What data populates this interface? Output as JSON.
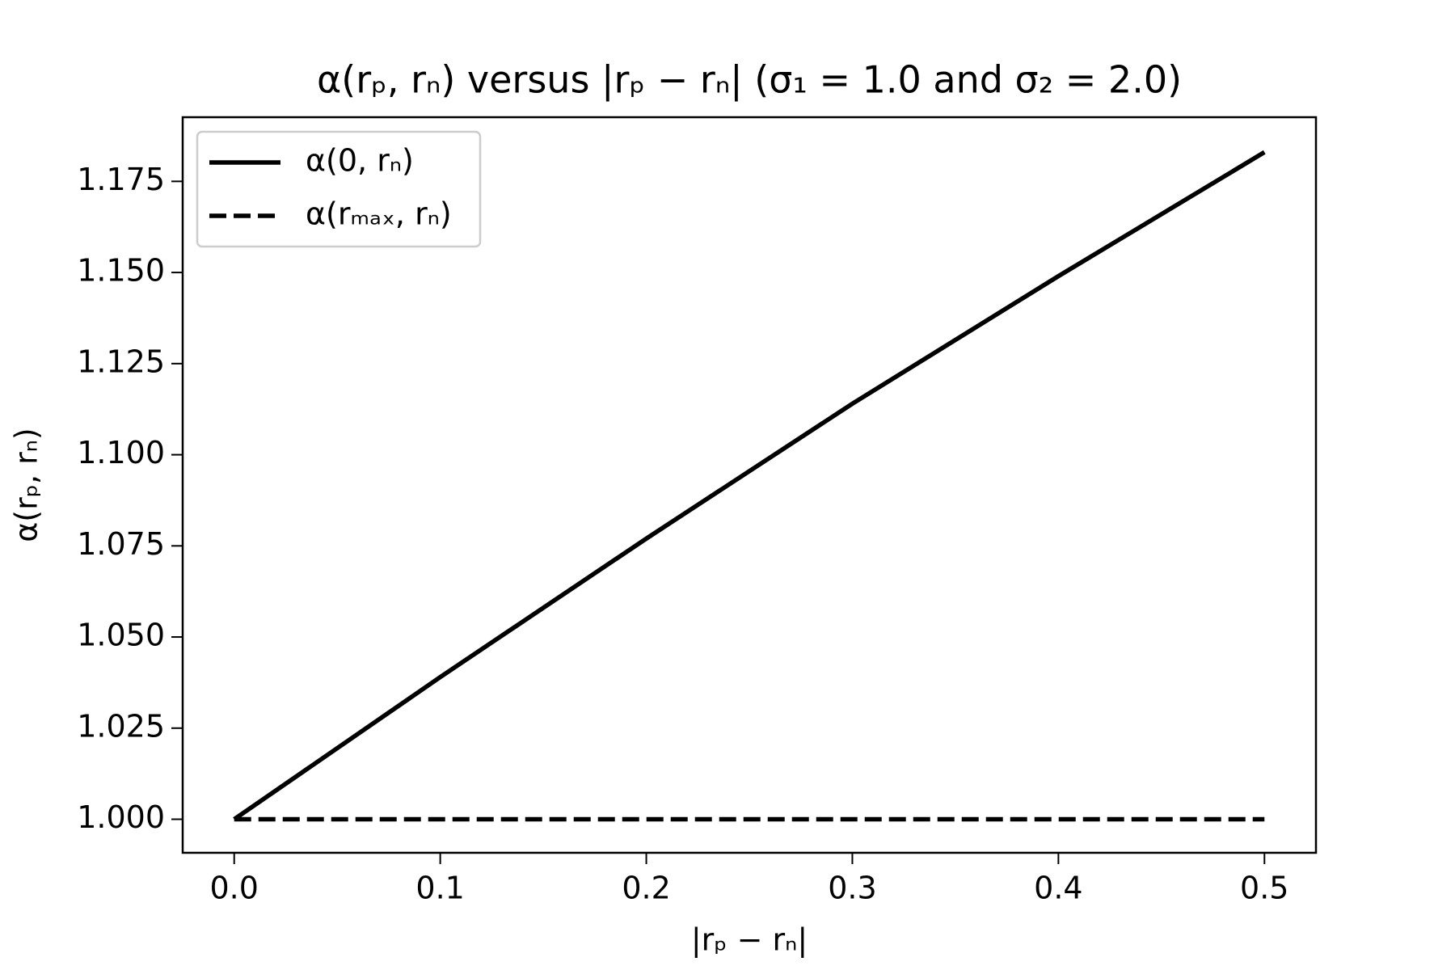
{
  "chart_data": {
    "type": "line",
    "title": "α(rₚ, rₙ) versus  |rₚ − rₙ| (σ₁ = 1.0 and σ₂ = 2.0)",
    "xlabel": "|rₚ − rₙ|",
    "ylabel": "α(rₚ, rₙ)",
    "x": [
      0,
      0.1,
      0.2,
      0.3,
      0.4,
      0.5
    ],
    "series": [
      {
        "name": "α(0, rₙ)",
        "color": "#000000",
        "dash": "solid",
        "values": [
          1.0,
          1.039,
          1.077,
          1.114,
          1.149,
          1.183
        ]
      },
      {
        "name": "α(rₘₐₓ, rₙ)",
        "color": "#000000",
        "dash": "dashed",
        "values": [
          1.0,
          1.0,
          1.0,
          1.0,
          1.0,
          1.0
        ]
      }
    ],
    "xlim": [
      -0.025,
      0.525
    ],
    "ylim": [
      0.9908,
      1.1926
    ],
    "xticks": [
      {
        "value": 0,
        "label": "0.0"
      },
      0.1,
      0.2,
      0.3,
      0.4,
      0.5
    ],
    "yticks": [
      {
        "value": 1,
        "label": "1.000"
      },
      {
        "value": 1.025,
        "label": "1.025"
      },
      {
        "value": 1.05,
        "label": "1.050"
      },
      {
        "value": 1.075,
        "label": "1.075"
      },
      {
        "value": 1.1,
        "label": "1.100"
      },
      {
        "value": 1.125,
        "label": "1.125"
      },
      {
        "value": 1.15,
        "label": "1.150"
      },
      {
        "value": 1.175,
        "label": "1.175"
      }
    ],
    "grid": false,
    "legend": "upper left"
  }
}
